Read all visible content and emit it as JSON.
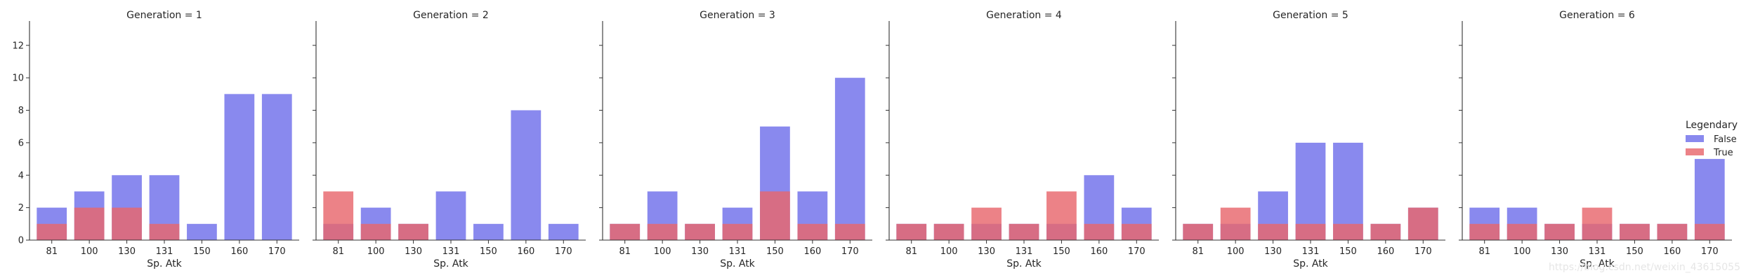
{
  "chart_data": {
    "type": "bar",
    "categories": [
      "81",
      "100",
      "130",
      "131",
      "150",
      "160",
      "170"
    ],
    "xlabel": "Sp. Atk",
    "ylabel": "",
    "ylim": [
      0,
      13.5
    ],
    "yticks": [
      0,
      2,
      4,
      6,
      8,
      10,
      12
    ],
    "grid": false,
    "legend": {
      "title": "Legendary",
      "position": "right",
      "entries": [
        {
          "name": "False",
          "color": "#6f6fea"
        },
        {
          "name": "True",
          "color": "#e8676d"
        }
      ]
    },
    "facets": [
      {
        "title": "Generation = 1",
        "series": [
          {
            "name": "False",
            "values": [
              2,
              3,
              4,
              4,
              1,
              9,
              9
            ]
          },
          {
            "name": "True",
            "values": [
              1,
              2,
              2,
              1,
              0,
              0,
              0
            ]
          }
        ]
      },
      {
        "title": "Generation = 2",
        "series": [
          {
            "name": "False",
            "values": [
              1,
              2,
              1,
              3,
              1,
              8,
              1
            ]
          },
          {
            "name": "True",
            "values": [
              3,
              1,
              1,
              0,
              0,
              0,
              0
            ]
          }
        ]
      },
      {
        "title": "Generation = 3",
        "series": [
          {
            "name": "False",
            "values": [
              1,
              3,
              1,
              2,
              7,
              3,
              10
            ]
          },
          {
            "name": "True",
            "values": [
              1,
              1,
              1,
              1,
              3,
              1,
              1
            ]
          }
        ]
      },
      {
        "title": "Generation = 4",
        "series": [
          {
            "name": "False",
            "values": [
              1,
              1,
              1,
              1,
              1,
              4,
              2
            ]
          },
          {
            "name": "True",
            "values": [
              1,
              1,
              2,
              1,
              3,
              1,
              1
            ]
          }
        ]
      },
      {
        "title": "Generation = 5",
        "series": [
          {
            "name": "False",
            "values": [
              1,
              1,
              3,
              6,
              6,
              1,
              2
            ]
          },
          {
            "name": "True",
            "values": [
              1,
              2,
              1,
              1,
              1,
              1,
              2
            ]
          }
        ]
      },
      {
        "title": "Generation = 6",
        "series": [
          {
            "name": "False",
            "values": [
              2,
              2,
              1,
              1,
              1,
              1,
              5
            ]
          },
          {
            "name": "True",
            "values": [
              1,
              1,
              1,
              2,
              1,
              1,
              1
            ]
          }
        ]
      }
    ]
  },
  "watermark": "https://blog.csdn.net/weixin_43615055"
}
